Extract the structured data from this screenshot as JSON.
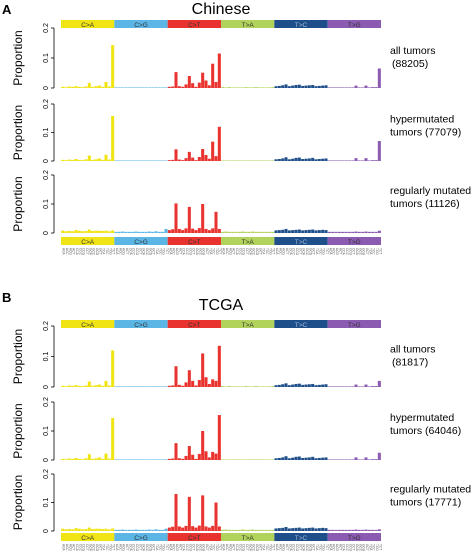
{
  "panels": [
    {
      "letter": "A",
      "title": "Chinese",
      "class_labels": [
        "C>A",
        "C>G",
        "C>T",
        "T>A",
        "T>C",
        "T>G"
      ],
      "colors": [
        "#f0e414",
        "#5bb6e6",
        "#e8332f",
        "#b2d35b",
        "#1f4f8a",
        "#8a5bb0"
      ]
    },
    {
      "letter": "B",
      "title": "TCGA",
      "class_labels": [
        "C>A",
        "C>G",
        "C>T",
        "T>A",
        "T>C",
        "T>G"
      ],
      "colors": [
        "#f0e414",
        "#5bb6e6",
        "#e8332f",
        "#b2d35b",
        "#1f4f8a",
        "#8a5bb0"
      ]
    }
  ],
  "chart_data": [
    {
      "type": "bar",
      "title": "Chinese",
      "categories_note": "96 trinucleotide contexts, 16 per substitution class",
      "ylabel": "Proportion",
      "ylim": [
        0,
        0.2
      ],
      "yticks": [
        0,
        0.1,
        0.2
      ],
      "series": [
        {
          "name": "all tumors",
          "count": "(88205)",
          "values": [
            0.004,
            0.003,
            0.005,
            0.004,
            0.006,
            0.004,
            0.003,
            0.005,
            0.017,
            0.004,
            0.006,
            0.008,
            0.004,
            0.02,
            0.005,
            0.143,
            0.002,
            0.002,
            0.002,
            0.002,
            0.002,
            0.002,
            0.002,
            0.002,
            0.002,
            0.002,
            0.002,
            0.002,
            0.002,
            0.002,
            0.002,
            0.002,
            0.004,
            0.005,
            0.053,
            0.006,
            0.004,
            0.012,
            0.04,
            0.016,
            0.004,
            0.018,
            0.051,
            0.025,
            0.009,
            0.081,
            0.02,
            0.115,
            0.003,
            0.002,
            0.003,
            0.002,
            0.002,
            0.002,
            0.002,
            0.003,
            0.002,
            0.002,
            0.003,
            0.002,
            0.002,
            0.002,
            0.002,
            0.003,
            0.006,
            0.007,
            0.009,
            0.012,
            0.006,
            0.008,
            0.01,
            0.011,
            0.007,
            0.008,
            0.009,
            0.01,
            0.006,
            0.007,
            0.008,
            0.009,
            0.002,
            0.002,
            0.002,
            0.002,
            0.002,
            0.002,
            0.002,
            0.002,
            0.008,
            0.002,
            0.002,
            0.008,
            0.002,
            0.003,
            0.003,
            0.065
          ]
        },
        {
          "name": "hypermutated tumors",
          "count": "(77079)",
          "values": [
            0.004,
            0.003,
            0.005,
            0.004,
            0.007,
            0.004,
            0.003,
            0.006,
            0.019,
            0.004,
            0.006,
            0.009,
            0.004,
            0.022,
            0.005,
            0.158,
            0.002,
            0.002,
            0.002,
            0.002,
            0.002,
            0.002,
            0.002,
            0.002,
            0.002,
            0.002,
            0.002,
            0.002,
            0.002,
            0.002,
            0.002,
            0.002,
            0.003,
            0.004,
            0.041,
            0.005,
            0.003,
            0.01,
            0.032,
            0.012,
            0.003,
            0.014,
            0.042,
            0.021,
            0.008,
            0.068,
            0.017,
            0.12,
            0.002,
            0.002,
            0.002,
            0.002,
            0.002,
            0.002,
            0.002,
            0.002,
            0.002,
            0.002,
            0.002,
            0.002,
            0.002,
            0.002,
            0.002,
            0.002,
            0.006,
            0.007,
            0.009,
            0.013,
            0.006,
            0.008,
            0.011,
            0.012,
            0.007,
            0.008,
            0.009,
            0.011,
            0.006,
            0.007,
            0.008,
            0.009,
            0.002,
            0.002,
            0.002,
            0.002,
            0.002,
            0.002,
            0.002,
            0.002,
            0.01,
            0.002,
            0.002,
            0.01,
            0.002,
            0.003,
            0.003,
            0.07
          ]
        },
        {
          "name": "regularly mutated tumors",
          "count": "(11126)",
          "values": [
            0.008,
            0.006,
            0.007,
            0.006,
            0.01,
            0.008,
            0.006,
            0.007,
            0.012,
            0.007,
            0.008,
            0.008,
            0.007,
            0.008,
            0.006,
            0.009,
            0.004,
            0.004,
            0.005,
            0.004,
            0.004,
            0.004,
            0.005,
            0.004,
            0.004,
            0.004,
            0.005,
            0.004,
            0.006,
            0.004,
            0.004,
            0.014,
            0.01,
            0.013,
            0.102,
            0.014,
            0.01,
            0.016,
            0.09,
            0.015,
            0.01,
            0.017,
            0.1,
            0.014,
            0.01,
            0.016,
            0.073,
            0.014,
            0.004,
            0.005,
            0.004,
            0.004,
            0.004,
            0.004,
            0.005,
            0.004,
            0.004,
            0.005,
            0.004,
            0.004,
            0.004,
            0.004,
            0.004,
            0.004,
            0.009,
            0.01,
            0.011,
            0.014,
            0.009,
            0.01,
            0.011,
            0.012,
            0.009,
            0.01,
            0.011,
            0.012,
            0.009,
            0.01,
            0.011,
            0.01,
            0.004,
            0.004,
            0.004,
            0.004,
            0.004,
            0.004,
            0.004,
            0.004,
            0.005,
            0.004,
            0.004,
            0.005,
            0.004,
            0.004,
            0.004,
            0.008
          ]
        }
      ]
    },
    {
      "type": "bar",
      "title": "TCGA",
      "categories_note": "96 trinucleotide contexts, 16 per substitution class",
      "ylabel": "Proportion",
      "ylim": [
        0,
        0.2
      ],
      "yticks": [
        0,
        0.1,
        0.2
      ],
      "series": [
        {
          "name": "all tumors",
          "count": "(81817)",
          "values": [
            0.004,
            0.003,
            0.005,
            0.004,
            0.006,
            0.004,
            0.003,
            0.005,
            0.018,
            0.004,
            0.006,
            0.008,
            0.004,
            0.02,
            0.005,
            0.12,
            0.002,
            0.002,
            0.002,
            0.002,
            0.002,
            0.002,
            0.002,
            0.002,
            0.002,
            0.002,
            0.002,
            0.002,
            0.002,
            0.002,
            0.002,
            0.002,
            0.004,
            0.005,
            0.068,
            0.007,
            0.004,
            0.015,
            0.055,
            0.02,
            0.005,
            0.023,
            0.11,
            0.032,
            0.01,
            0.025,
            0.02,
            0.135,
            0.003,
            0.002,
            0.003,
            0.002,
            0.002,
            0.002,
            0.002,
            0.003,
            0.002,
            0.002,
            0.003,
            0.002,
            0.002,
            0.002,
            0.002,
            0.003,
            0.006,
            0.007,
            0.009,
            0.012,
            0.006,
            0.008,
            0.01,
            0.011,
            0.007,
            0.008,
            0.009,
            0.01,
            0.006,
            0.007,
            0.008,
            0.009,
            0.002,
            0.002,
            0.002,
            0.002,
            0.002,
            0.002,
            0.002,
            0.002,
            0.008,
            0.002,
            0.002,
            0.008,
            0.002,
            0.003,
            0.003,
            0.02
          ]
        },
        {
          "name": "hypermutated tumors",
          "count": "(64046)",
          "values": [
            0.004,
            0.003,
            0.005,
            0.004,
            0.007,
            0.004,
            0.003,
            0.006,
            0.02,
            0.004,
            0.006,
            0.009,
            0.004,
            0.022,
            0.005,
            0.145,
            0.002,
            0.002,
            0.002,
            0.002,
            0.002,
            0.002,
            0.002,
            0.002,
            0.002,
            0.002,
            0.002,
            0.002,
            0.002,
            0.002,
            0.002,
            0.002,
            0.004,
            0.005,
            0.058,
            0.006,
            0.004,
            0.014,
            0.048,
            0.018,
            0.004,
            0.021,
            0.1,
            0.03,
            0.009,
            0.028,
            0.022,
            0.155,
            0.002,
            0.002,
            0.002,
            0.002,
            0.002,
            0.002,
            0.002,
            0.002,
            0.002,
            0.002,
            0.002,
            0.002,
            0.002,
            0.002,
            0.002,
            0.002,
            0.006,
            0.007,
            0.009,
            0.013,
            0.006,
            0.008,
            0.011,
            0.012,
            0.007,
            0.008,
            0.009,
            0.011,
            0.006,
            0.007,
            0.008,
            0.009,
            0.002,
            0.002,
            0.002,
            0.002,
            0.002,
            0.002,
            0.002,
            0.002,
            0.009,
            0.002,
            0.002,
            0.009,
            0.002,
            0.003,
            0.003,
            0.025
          ]
        },
        {
          "name": "regularly mutated tumors",
          "count": "(17771)",
          "values": [
            0.008,
            0.006,
            0.007,
            0.006,
            0.01,
            0.008,
            0.006,
            0.007,
            0.012,
            0.007,
            0.008,
            0.008,
            0.007,
            0.008,
            0.006,
            0.009,
            0.004,
            0.004,
            0.005,
            0.004,
            0.004,
            0.004,
            0.005,
            0.004,
            0.004,
            0.004,
            0.005,
            0.004,
            0.006,
            0.004,
            0.004,
            0.008,
            0.012,
            0.015,
            0.13,
            0.016,
            0.012,
            0.018,
            0.12,
            0.017,
            0.012,
            0.019,
            0.125,
            0.016,
            0.012,
            0.018,
            0.1,
            0.016,
            0.004,
            0.005,
            0.004,
            0.004,
            0.004,
            0.004,
            0.005,
            0.004,
            0.004,
            0.005,
            0.004,
            0.004,
            0.004,
            0.004,
            0.004,
            0.004,
            0.009,
            0.01,
            0.011,
            0.014,
            0.009,
            0.01,
            0.011,
            0.012,
            0.009,
            0.01,
            0.011,
            0.012,
            0.009,
            0.01,
            0.011,
            0.01,
            0.004,
            0.004,
            0.004,
            0.004,
            0.004,
            0.004,
            0.004,
            0.004,
            0.005,
            0.004,
            0.004,
            0.005,
            0.004,
            0.004,
            0.004,
            0.006
          ]
        }
      ]
    }
  ],
  "context_labels": [
    "ACA",
    "ACC",
    "ACG",
    "ACT",
    "CCA",
    "CCC",
    "CCG",
    "CCT",
    "GCA",
    "GCC",
    "GCG",
    "GCT",
    "TCA",
    "TCC",
    "TCG",
    "TCT"
  ]
}
